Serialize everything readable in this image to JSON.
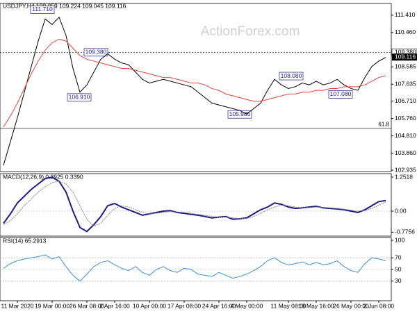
{
  "watermark": "ActionForex.com",
  "chart_data": [
    {
      "type": "line",
      "title": "USDJPY,H4 109.059 109.224 109.045 109.116",
      "ylim": [
        102.86,
        112.05
      ],
      "yticks": [
        {
          "value": 111.41,
          "label": "111.410"
        },
        {
          "value": 110.46,
          "label": "110.460"
        },
        {
          "value": 108.585,
          "label": "108.585"
        },
        {
          "value": 107.635,
          "label": "107.635"
        },
        {
          "value": 106.71,
          "label": "106.710"
        },
        {
          "value": 105.76,
          "label": "105.760"
        },
        {
          "value": 104.81,
          "label": "104.810"
        },
        {
          "value": 103.86,
          "label": "103.860"
        },
        {
          "value": 102.935,
          "label": "102.935"
        }
      ],
      "series": [
        {
          "color": "#000000",
          "values": [
            103.2,
            104.5,
            105.8,
            107.2,
            108.6,
            110.0,
            111.2,
            110.9,
            111.3,
            110.3,
            108.5,
            107.2,
            107.6,
            108.3,
            109.0,
            109.3,
            109.0,
            108.8,
            108.7,
            108.3,
            107.9,
            107.7,
            107.8,
            107.9,
            107.8,
            107.7,
            107.6,
            107.5,
            107.2,
            106.9,
            106.6,
            106.5,
            106.4,
            106.3,
            106.2,
            106.0,
            106.3,
            106.6,
            107.3,
            107.9,
            107.6,
            107.4,
            107.5,
            107.7,
            107.6,
            107.8,
            107.6,
            107.7,
            107.9,
            107.6,
            107.4,
            107.3,
            108.0,
            108.6,
            108.9,
            109.1
          ]
        },
        {
          "color": "#e8423f",
          "values": [
            105.3,
            105.9,
            106.6,
            107.4,
            108.2,
            108.9,
            109.5,
            109.9,
            110.1,
            110.0,
            109.6,
            109.2,
            109.0,
            108.9,
            108.8,
            108.7,
            108.6,
            108.5,
            108.5,
            108.4,
            108.3,
            108.2,
            108.1,
            108.0,
            108.0,
            107.9,
            107.8,
            107.7,
            107.7,
            107.6,
            107.4,
            107.3,
            107.1,
            107.0,
            106.9,
            106.8,
            106.7,
            106.7,
            106.8,
            106.9,
            107.0,
            107.1,
            107.1,
            107.2,
            107.2,
            107.3,
            107.3,
            107.4,
            107.4,
            107.5,
            107.5,
            107.5,
            107.6,
            107.8,
            108.0,
            108.1
          ]
        }
      ],
      "annotations": [
        {
          "value": 111.71,
          "label": "111.710"
        },
        {
          "value": 109.38,
          "label": "109.380"
        },
        {
          "value": 106.91,
          "label": "106.910"
        },
        {
          "value": 105.985,
          "label": "105.985"
        },
        {
          "value": 108.08,
          "label": "108.080"
        },
        {
          "value": 107.08,
          "label": "107.080"
        }
      ],
      "level": {
        "value": 109.38,
        "label": "109.380"
      },
      "last": {
        "value": 109.116,
        "label": "109.116"
      },
      "fib": {
        "value": 105.24,
        "label": "61.8"
      }
    },
    {
      "type": "line",
      "title": "MACD(12,26,9) 0.3925 0.3390",
      "ylim": [
        -0.92,
        1.38
      ],
      "yticks": [
        {
          "value": 1.2518,
          "label": "1.2518"
        },
        {
          "value": 0,
          "label": "0.00"
        },
        {
          "value": -0.7756,
          "label": "-0.7756"
        }
      ],
      "series": [
        {
          "color": "#1a1a8c",
          "values": [
            -0.45,
            -0.1,
            0.3,
            0.55,
            0.8,
            1.0,
            1.2,
            1.25,
            1.1,
            0.7,
            0.0,
            -0.6,
            -0.75,
            -0.5,
            -0.2,
            0.2,
            0.28,
            0.15,
            0.05,
            -0.05,
            -0.15,
            -0.1,
            -0.05,
            0.0,
            0.02,
            -0.05,
            -0.08,
            -0.12,
            -0.15,
            -0.2,
            -0.25,
            -0.22,
            -0.2,
            -0.3,
            -0.28,
            -0.25,
            -0.1,
            0.05,
            0.15,
            0.3,
            0.25,
            0.15,
            0.1,
            0.12,
            0.15,
            0.18,
            0.12,
            0.1,
            0.08,
            0.05,
            0.0,
            -0.05,
            0.05,
            0.2,
            0.35,
            0.39
          ]
        },
        {
          "color": "#8a8a8a",
          "values": [
            -0.5,
            -0.35,
            -0.1,
            0.2,
            0.45,
            0.7,
            0.9,
            1.05,
            1.1,
            1.0,
            0.7,
            0.2,
            -0.3,
            -0.55,
            -0.45,
            -0.15,
            0.1,
            0.2,
            0.15,
            0.05,
            -0.05,
            -0.1,
            -0.08,
            -0.05,
            -0.02,
            -0.03,
            -0.05,
            -0.08,
            -0.12,
            -0.15,
            -0.2,
            -0.22,
            -0.22,
            -0.25,
            -0.27,
            -0.27,
            -0.2,
            -0.08,
            0.05,
            0.15,
            0.22,
            0.2,
            0.15,
            0.12,
            0.13,
            0.15,
            0.14,
            0.12,
            0.1,
            0.07,
            0.04,
            0.0,
            0.02,
            0.1,
            0.22,
            0.34
          ]
        }
      ]
    },
    {
      "type": "line",
      "title": "RSI(14) 65.2913",
      "ylim": [
        -3.6,
        104.8
      ],
      "yticks": [
        100,
        70,
        50,
        30
      ],
      "series": [
        {
          "color": "#3a8ede",
          "values": [
            52,
            60,
            65,
            68,
            70,
            72,
            75,
            68,
            72,
            55,
            40,
            30,
            42,
            55,
            62,
            65,
            58,
            52,
            48,
            55,
            45,
            40,
            50,
            55,
            48,
            45,
            52,
            50,
            42,
            40,
            38,
            45,
            40,
            35,
            38,
            42,
            48,
            55,
            65,
            70,
            62,
            58,
            60,
            63,
            58,
            62,
            58,
            60,
            65,
            55,
            48,
            45,
            60,
            70,
            68,
            65
          ]
        }
      ],
      "categories": [
        null,
        null,
        "11 Mar 2020",
        null,
        null,
        null,
        null,
        "19 Mar 00:00",
        null,
        null,
        null,
        null,
        "26 Mar 08:00",
        null,
        null,
        null,
        "2 Apr 16:00",
        null,
        null,
        null,
        null,
        "10 Apr 00:00",
        null,
        null,
        null,
        null,
        "17 Apr 08:00",
        null,
        null,
        null,
        null,
        "24 Apr 16:00",
        null,
        null,
        null,
        "4 May 00:00",
        null,
        null,
        null,
        null,
        null,
        "11 May 08:00",
        null,
        null,
        null,
        "18 May 16:00",
        null,
        null,
        null,
        null,
        "26 May 00:00",
        null,
        null,
        null,
        "2 Jun 08:00",
        null
      ]
    }
  ]
}
